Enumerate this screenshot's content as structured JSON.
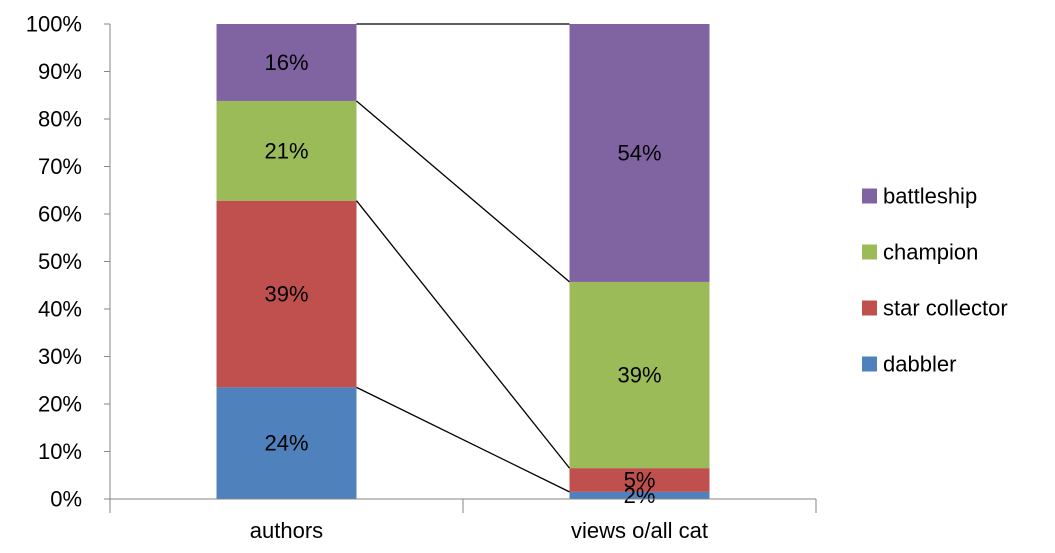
{
  "chart_data": {
    "type": "bar",
    "stacked": true,
    "percent_stacked": true,
    "categories": [
      "authors",
      "views o/all cat"
    ],
    "series": [
      {
        "name": "dabbler",
        "values": [
          23.5,
          1.5
        ],
        "labels": [
          "24%",
          "2%"
        ],
        "color": "#4F81BD"
      },
      {
        "name": "star collector",
        "values": [
          39.3,
          5.0
        ],
        "labels": [
          "39%",
          "5%"
        ],
        "color": "#C0504D"
      },
      {
        "name": "champion",
        "values": [
          21.0,
          39.2
        ],
        "labels": [
          "21%",
          "39%"
        ],
        "color": "#9BBB59"
      },
      {
        "name": "battleship",
        "values": [
          16.2,
          54.3
        ],
        "labels": [
          "16%",
          "54%"
        ],
        "color": "#8064A2"
      }
    ],
    "y_ticks": [
      "0%",
      "10%",
      "20%",
      "30%",
      "40%",
      "50%",
      "60%",
      "70%",
      "80%",
      "90%",
      "100%"
    ],
    "ylim": [
      0,
      100
    ],
    "series_lines": true,
    "grid": false,
    "legend_position": "right",
    "legend_order": [
      "battleship",
      "champion",
      "star collector",
      "dabbler"
    ],
    "axis_color": "#868686"
  }
}
